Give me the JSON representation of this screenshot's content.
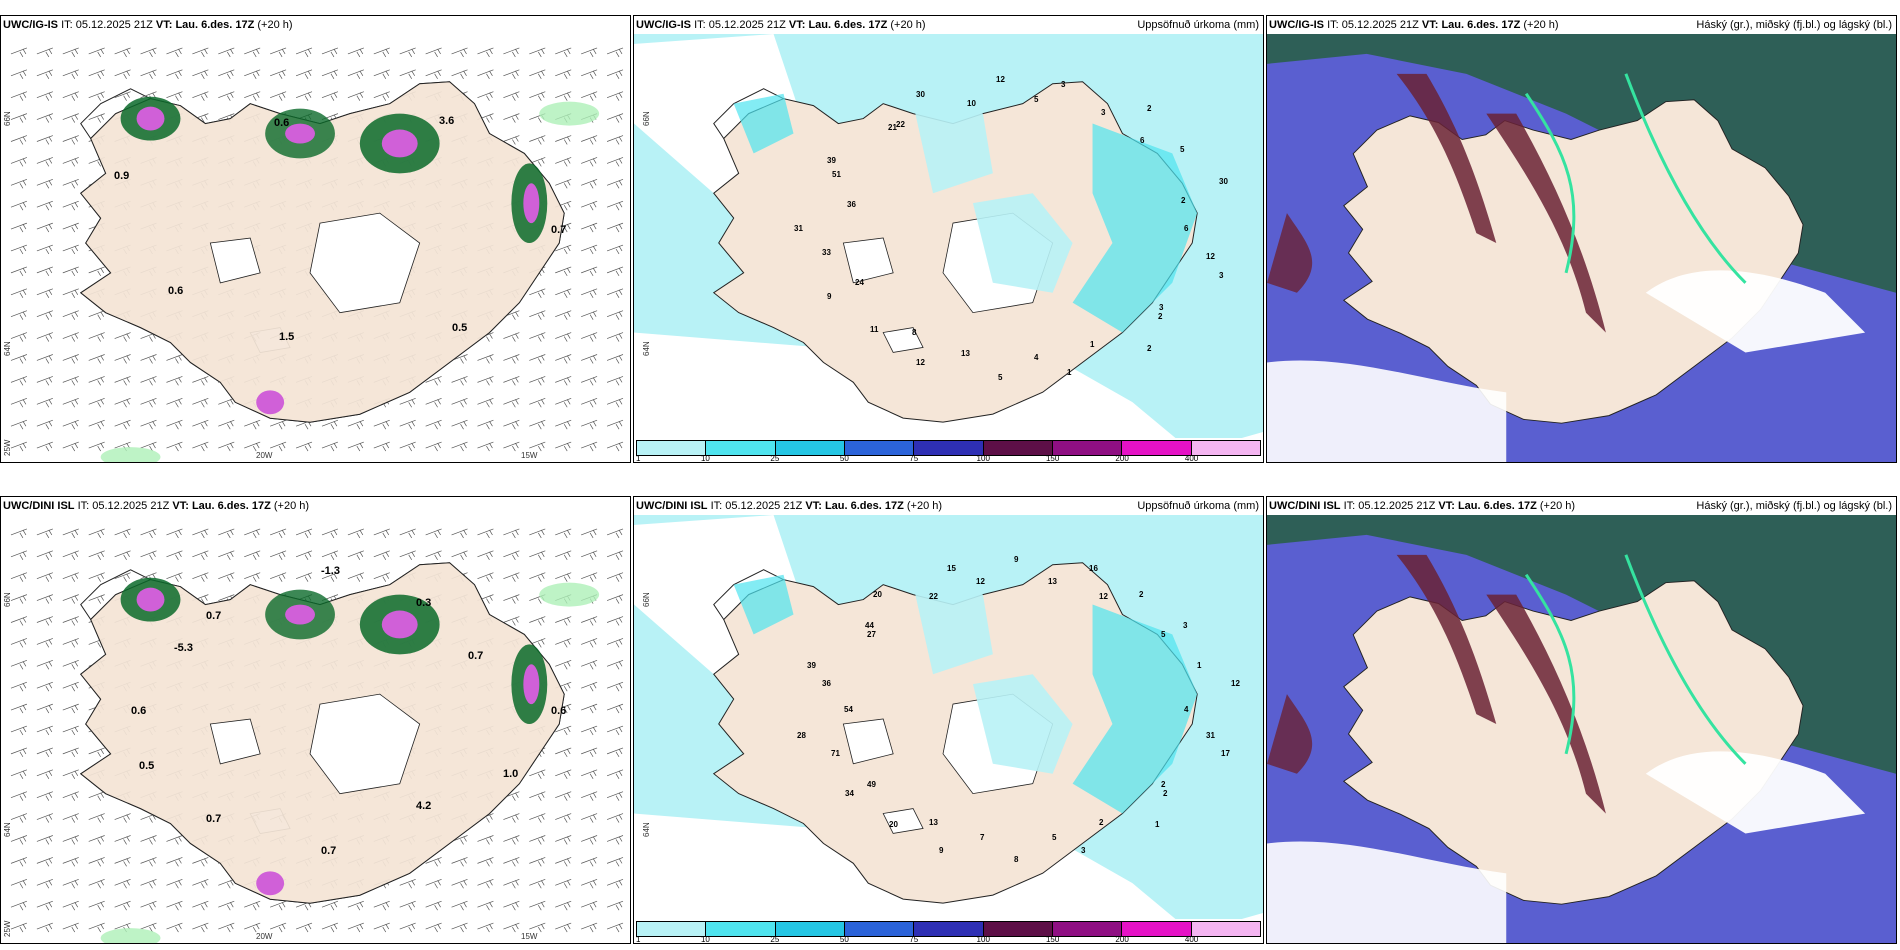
{
  "colors": {
    "land": "#f5e6d8",
    "sea": "#ffffff",
    "precip_light": "#b8f2f6",
    "precip_mid": "#4fe4ef",
    "cloud_high": "#2c5f50",
    "cloud_mid": "#6a2235",
    "cloud_low": "#5a5fd0",
    "green_light": "#aef0b8",
    "green_dark": "#0b6a2a",
    "magenta": "#d060d8"
  },
  "colorbar": {
    "colors": [
      "#b8f2f6",
      "#4fe4ef",
      "#25c6e4",
      "#2b63d9",
      "#2e2fb4",
      "#5d0f47",
      "#8f0f83",
      "#e512c6",
      "#f4b5f1"
    ],
    "ticks": [
      "1",
      "10",
      "25",
      "50",
      "75",
      "100",
      "150",
      "200",
      "400"
    ]
  },
  "panels": [
    {
      "model": "UWC/IG-IS",
      "it_label": "IT:",
      "it_value": "05.12.2025 21Z",
      "vt_label": "VT:",
      "vt_value": "Lau. 6.des. 17Z",
      "lead": "(+20 h)",
      "right_title": "",
      "kind": "wind",
      "labels": [
        "0.7",
        "0.5",
        "1.5",
        "0.6",
        "0.9",
        "0.6",
        "3.6"
      ],
      "lon_labels": [
        "20W",
        "15W"
      ],
      "lat_labels": [
        "66N",
        "64N",
        "25W"
      ]
    },
    {
      "model": "UWC/IG-IS",
      "it_label": "IT:",
      "it_value": "05.12.2025 21Z",
      "vt_label": "VT:",
      "vt_value": "Lau. 6.des. 17Z",
      "lead": "(+20 h)",
      "right_title": "Uppsöfnuð úrkoma (mm)",
      "kind": "precip",
      "labels": [
        "6",
        "12",
        "3",
        "3",
        "2",
        "2",
        "1",
        "1",
        "4",
        "5",
        "13",
        "12",
        "8",
        "11",
        "9",
        "24",
        "33",
        "31",
        "36",
        "51",
        "39",
        "21",
        "22",
        "30",
        "10",
        "12",
        "5",
        "3",
        "3",
        "2",
        "6",
        "5",
        "30",
        "2"
      ],
      "lon_labels": [],
      "lat_labels": [
        "66N",
        "64N"
      ]
    },
    {
      "model": "UWC/IG-IS",
      "it_label": "IT:",
      "it_value": "05.12.2025 21Z",
      "vt_label": "VT:",
      "vt_value": "Lau. 6.des. 17Z",
      "lead": "(+20 h)",
      "right_title": "Háský (gr.), miðský (fj.bl.) og lágský (bl.)",
      "kind": "cloud",
      "labels": [],
      "lon_labels": [],
      "lat_labels": []
    },
    {
      "model": "UWC/DINI ISL",
      "it_label": "IT:",
      "it_value": "05.12.2025 21Z",
      "vt_label": "VT:",
      "vt_value": "Lau. 6.des. 17Z",
      "lead": "(+20 h)",
      "right_title": "",
      "kind": "wind",
      "labels": [
        "0.6",
        "1.0",
        "4.2",
        "0.7",
        "0.7",
        "0.5",
        "0.6",
        "-5.3",
        "0.7",
        "-1.3",
        "0.3",
        "0.7"
      ],
      "lon_labels": [
        "20W",
        "15W"
      ],
      "lat_labels": [
        "66N",
        "64N",
        "25W"
      ]
    },
    {
      "model": "UWC/DINI ISL",
      "it_label": "IT:",
      "it_value": "05.12.2025 21Z",
      "vt_label": "VT:",
      "vt_value": "Lau. 6.des. 17Z",
      "lead": "(+20 h)",
      "right_title": "Uppsöfnuð úrkoma (mm)",
      "kind": "precip",
      "labels": [
        "4",
        "31",
        "17",
        "2",
        "2",
        "1",
        "2",
        "3",
        "5",
        "8",
        "7",
        "9",
        "13",
        "20",
        "34",
        "49",
        "71",
        "28",
        "54",
        "36",
        "39",
        "27",
        "44",
        "20",
        "22",
        "15",
        "12",
        "9",
        "13",
        "16",
        "12",
        "2",
        "3",
        "5",
        "1",
        "12"
      ],
      "lon_labels": [],
      "lat_labels": [
        "66N",
        "64N"
      ]
    },
    {
      "model": "UWC/DINI ISL",
      "it_label": "IT:",
      "it_value": "05.12.2025 21Z",
      "vt_label": "VT:",
      "vt_value": "Lau. 6.des. 17Z",
      "lead": "(+20 h)",
      "right_title": "Háský (gr.), miðský (fj.bl.) og lágský (bl.)",
      "kind": "cloud",
      "labels": [],
      "lon_labels": [],
      "lat_labels": []
    }
  ]
}
